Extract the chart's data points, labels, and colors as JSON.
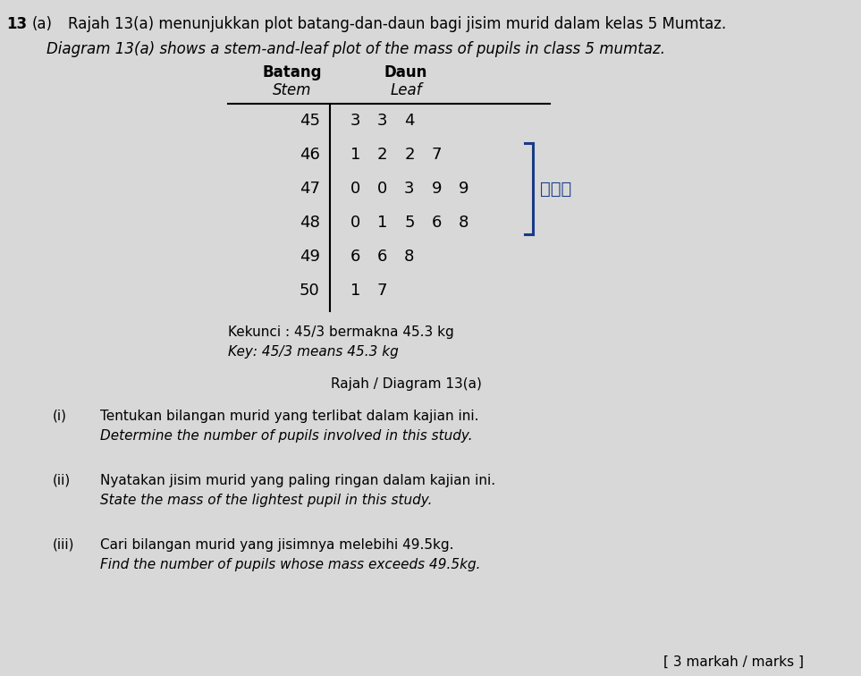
{
  "title_prefix": "13",
  "title_part_a": "(a)",
  "title_malay": "Rajah 13(a) menunjukkan plot batang-dan-daun bagi jisim murid dalam kelas 5 Mumtaz.",
  "title_english": "Diagram 13(a) shows a stem-and-leaf plot of the mass of pupils in class 5 mumtaz.",
  "col_header_stem_malay": "Batang",
  "col_header_stem_eng": "Stem",
  "col_header_leaf_malay": "Daun",
  "col_header_leaf_eng": "Leaf",
  "stem_leaf_data": [
    {
      "stem": "45",
      "leaves": [
        "3",
        "3",
        "4"
      ]
    },
    {
      "stem": "46",
      "leaves": [
        "1",
        "2",
        "2",
        "7"
      ]
    },
    {
      "stem": "47",
      "leaves": [
        "0",
        "0",
        "3",
        "9",
        "9"
      ]
    },
    {
      "stem": "48",
      "leaves": [
        "0",
        "1",
        "5",
        "6",
        "8"
      ]
    },
    {
      "stem": "49",
      "leaves": [
        "6",
        "6",
        "8"
      ]
    },
    {
      "stem": "50",
      "leaves": [
        "1",
        "7"
      ]
    }
  ],
  "key_malay": "Kekunci : 45/3 bermakna 45.3 kg",
  "key_eng": "Key: 45/3 means 45.3 kg",
  "diagram_label": "Rajah / Diagram 13(a)",
  "questions": [
    {
      "roman": "(i)",
      "malay": "Tentukan bilangan murid yang terlibat dalam kajian ini.",
      "english": "Determine the number of pupils involved in this study."
    },
    {
      "roman": "(ii)",
      "malay": "Nyatakan jisim murid yang paling ringan dalam kajian ini.",
      "english": "State the mass of the lightest pupil in this study."
    },
    {
      "roman": "(iii)",
      "malay": "Cari bilangan murid yang jisimnya melebihi 49.5kg.",
      "english": "Find the number of pupils whose mass exceeds 49.5kg."
    }
  ],
  "footer": "[ 3 markah / marks ]",
  "bg_color": "#d8d8d8",
  "bracket_color": "#1a3a8a",
  "annotation_color": "#1a3a8a",
  "annotation_text": "等波里"
}
